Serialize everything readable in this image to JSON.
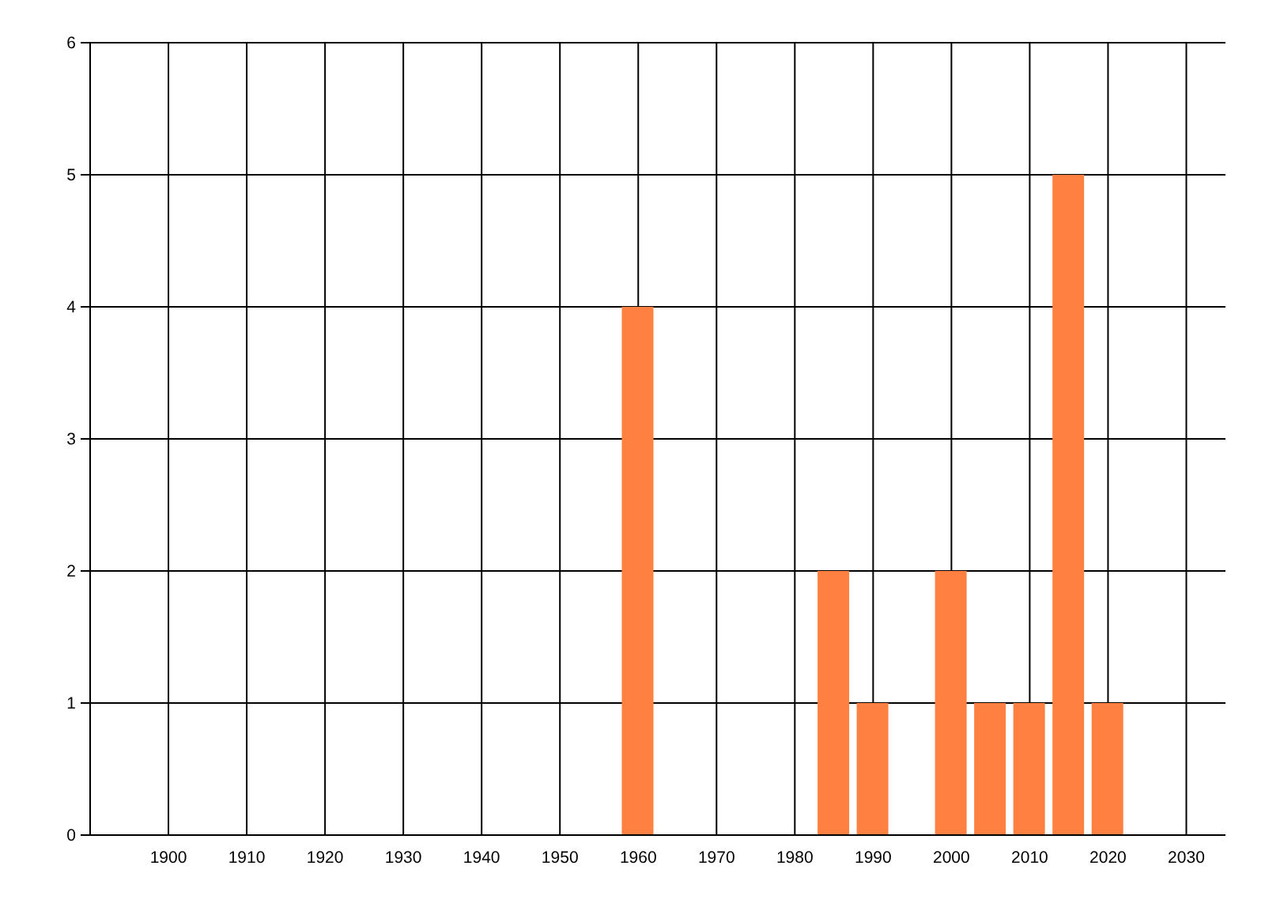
{
  "chart_data": {
    "type": "bar",
    "x": [
      1960,
      1985,
      1990,
      2000,
      2005,
      2010,
      2015,
      2020
    ],
    "values": [
      4,
      2,
      1,
      2,
      1,
      1,
      5,
      1
    ],
    "color": "#ff8040",
    "xlim": [
      1890,
      2035
    ],
    "xticks": [
      1900,
      1910,
      1920,
      1930,
      1940,
      1950,
      1960,
      1970,
      1980,
      1990,
      2000,
      2010,
      2020,
      2030
    ],
    "ylim": [
      0,
      6
    ],
    "yticks": [
      0,
      1,
      2,
      3,
      4,
      5,
      6
    ],
    "grid": true
  }
}
